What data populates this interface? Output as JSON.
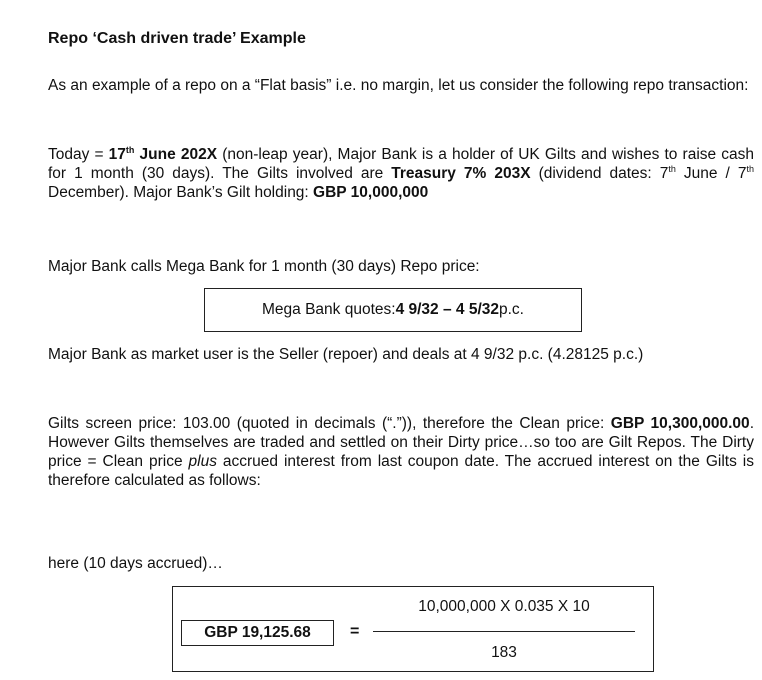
{
  "heading": "Repo ‘Cash driven trade’ Example",
  "intro": {
    "text": "As an example of a repo on a “Flat basis” i.e. no margin, let us consider the following repo transaction:"
  },
  "today": {
    "t1": "Today = ",
    "date_day": "17",
    "date_sup": "th",
    "date_rest": " June 202X",
    "t2": " (non-leap year), Major Bank is a holder of UK Gilts and wishes to raise cash for 1 month (30 days). The Gilts involved are ",
    "gilt": "Treasury 7% 203X",
    "t3": " (dividend dates: 7",
    "sup1": "th",
    "t4": " June / 7",
    "sup2": "th",
    "t5": " December). Major Bank’s Gilt holding: ",
    "holding": "GBP 10,000,000"
  },
  "calls": {
    "text": "Major Bank calls Mega Bank for 1 month (30 days) Repo price:"
  },
  "quote": {
    "prefix": "Mega Bank quotes: ",
    "price": "4 9/32 – 4 5/32",
    "suffix": " p.c."
  },
  "seller": {
    "text": "Major Bank as market user is the Seller (repoer) and deals at 4 9/32 p.c. (4.28125 p.c.)"
  },
  "gilts": {
    "t1": "Gilts screen price: 103.00 (quoted in decimals (“.”)), therefore the Clean price: ",
    "clean": "GBP 10,300,000.00",
    "t2": ". However Gilts themselves are traded and settled on their Dirty price…so too are Gilt Repos. The Dirty price = Clean price ",
    "plus": "plus",
    "t3": " accrued interest from last coupon date. The accrued interest on the Gilts is therefore calculated as follows:"
  },
  "accrued": {
    "text": "here (10 days accrued)…"
  },
  "calc": {
    "result": "GBP 19,125.68",
    "equals": "=",
    "numerator": "10,000,000  X  0.035  X  10",
    "denominator": "183"
  }
}
